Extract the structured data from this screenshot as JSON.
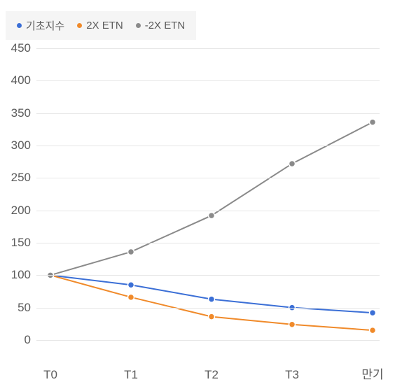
{
  "chart": {
    "type": "line",
    "background_color": "#ffffff",
    "grid_color": "#e6e6e6",
    "axis_text_color": "#5b5b5b",
    "label_fontsize": 17,
    "legend_fontsize": 15,
    "legend_bg": "#f5f5f5",
    "ylim": [
      0,
      450
    ],
    "ytick_step": 50,
    "yticks": [
      0,
      50,
      100,
      150,
      200,
      250,
      300,
      350,
      400,
      450
    ],
    "categories": [
      "T0",
      "T1",
      "T2",
      "T3",
      "만기"
    ],
    "line_width": 2,
    "marker_radius": 4.5,
    "marker_stroke": "#ffffff",
    "marker_stroke_width": 1.5,
    "series": [
      {
        "name": "기초지수",
        "color": "#3b6fd6",
        "marker_fill": "#3b6fd6",
        "values": [
          100,
          85,
          63,
          50,
          42
        ]
      },
      {
        "name": "2X ETN",
        "color": "#f08a2a",
        "marker_fill": "#f08a2a",
        "values": [
          100,
          66,
          36,
          24,
          15
        ]
      },
      {
        "name": "-2X ETN",
        "color": "#8a8a8a",
        "marker_fill": "#8a8a8a",
        "values": [
          100,
          136,
          192,
          272,
          336
        ]
      }
    ]
  }
}
